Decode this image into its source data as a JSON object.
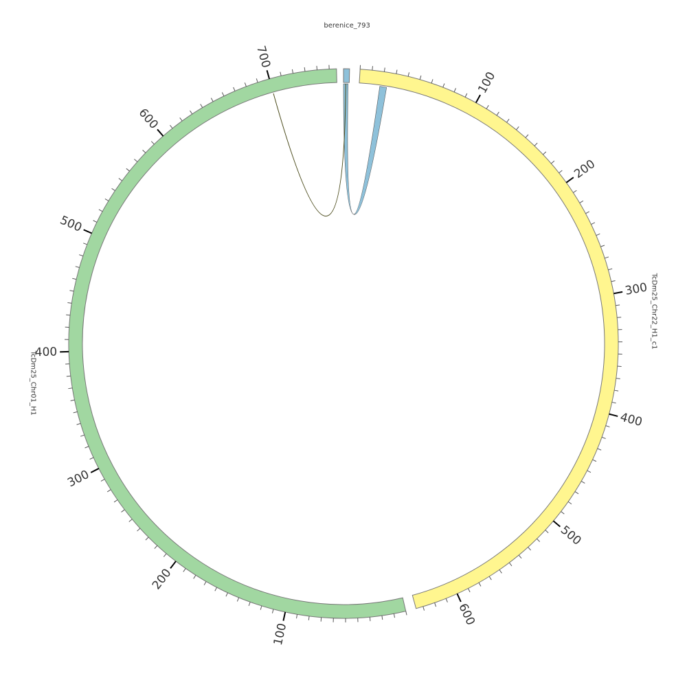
{
  "segments": [
    {
      "name": "berenice_793",
      "length": 5,
      "color": "#8ec1da",
      "ticks": []
    },
    {
      "name": "TcDm25_Chr22_H1_c1",
      "length": 636,
      "color": "#fff68f",
      "ticks": [
        100,
        200,
        300,
        400,
        500,
        600
      ]
    },
    {
      "name": "TcDm25_Chr01_H1",
      "length": 756,
      "color": "#a1d7a1",
      "ticks": [
        100,
        200,
        300,
        400,
        500,
        600,
        700
      ]
    }
  ],
  "links": [
    {
      "source": {
        "segment": 0,
        "start": 0,
        "end": 4
      },
      "target": {
        "segment": 1,
        "start": 18,
        "end": 24
      },
      "color": "#8ec1da"
    },
    {
      "source": {
        "segment": 2,
        "start": 700,
        "end": 700
      },
      "target": {
        "segment": 0,
        "start": 2,
        "end": 2
      },
      "color": "#4a4a1a"
    }
  ]
}
